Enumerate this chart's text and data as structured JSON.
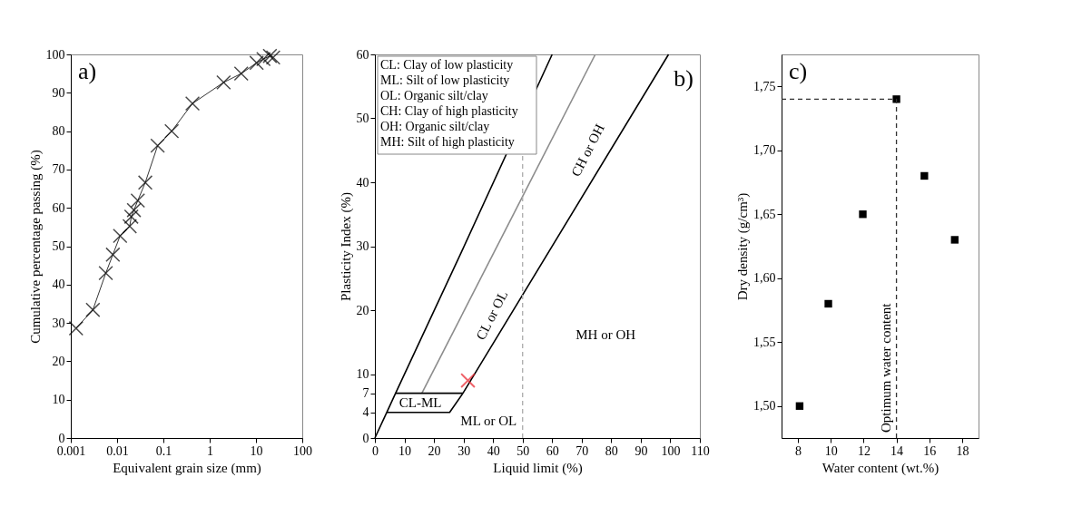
{
  "chart_data": [
    {
      "type": "line",
      "marker": "cross",
      "log": "x",
      "xlabel": "Equivalent grain size (mm)",
      "ylabel": "Cumulative percentage passing (%)",
      "xlim": [
        0.001,
        100
      ],
      "xticks": [
        0.001,
        0.01,
        0.1,
        1,
        10,
        100
      ],
      "ylim": [
        0,
        100
      ],
      "yticks": [
        0,
        10,
        20,
        30,
        40,
        50,
        60,
        70,
        80,
        90,
        100
      ],
      "series": [
        {
          "color": "#000000",
          "x": [
            0.0013,
            0.003,
            0.0057,
            0.0081,
            0.0116,
            0.0187,
            0.0203,
            0.0231,
            0.028,
            0.0406,
            0.075,
            0.151,
            0.425,
            2.0,
            4.8,
            10.3,
            14.5,
            20,
            23.5
          ],
          "values": [
            28.6,
            33.4,
            43,
            47.8,
            52.7,
            55.2,
            57.7,
            59.4,
            61.9,
            66.6,
            76.2,
            80,
            87.2,
            92.7,
            95,
            97.8,
            98.8,
            99.6,
            99.2
          ]
        }
      ],
      "annotations": [
        "a)"
      ]
    },
    {
      "type": "line",
      "marker": "none",
      "xlabel": "Liquid limit (%)",
      "ylabel": "Plasticity Index (%)",
      "xlim": [
        0,
        110
      ],
      "xticks": [
        0,
        10,
        20,
        30,
        40,
        50,
        60,
        70,
        80,
        90,
        100,
        110
      ],
      "ylim": [
        0,
        60
      ],
      "yticks": [
        0,
        4,
        7,
        10,
        20,
        30,
        40,
        50,
        60
      ],
      "series": [
        {
          "color": "#000000",
          "x": [
            0,
            4,
            7,
            29.3,
            60
          ],
          "values": [
            0,
            4,
            7,
            29.1,
            60
          ]
        },
        {
          "color": "#8c8c8c",
          "x": [
            15.9,
            74.6
          ],
          "values": [
            7,
            60
          ]
        },
        {
          "color": "#000000",
          "x": [
            4,
            25.3,
            29.8,
            99.4
          ],
          "values": [
            4,
            4,
            7,
            60
          ]
        },
        {
          "color": "#000000",
          "x": [
            7,
            29.8
          ],
          "values": [
            7,
            7
          ]
        },
        {
          "type": "scatter",
          "marker": "cross",
          "color": "#e8202a",
          "x": [
            31.5
          ],
          "values": [
            9
          ]
        }
      ],
      "ref_lines": [
        {
          "axis": "x",
          "value": 50,
          "color": "#aaaaaa",
          "line_style": "dashed"
        }
      ],
      "annotations": [
        "CL: Clay of low plasticity",
        "ML: Silt of low plasticity",
        "OL: Organic silt/clay",
        "CH: Clay of high plasticity",
        "OH: Organic silt/clay",
        "MH: Silt of high plasticity",
        "CH or OH",
        "CL or OL",
        "MH or OH",
        "ML or OL",
        "CL-ML",
        "b)"
      ]
    },
    {
      "type": "scatter",
      "marker": "square",
      "xlabel": "Water content (wt.%)",
      "ylabel": "Dry density (g/cm³)",
      "xlim": [
        7,
        19
      ],
      "xticks": [
        8,
        10,
        12,
        14,
        16,
        18
      ],
      "ylim": [
        1.475,
        1.775
      ],
      "yticks": [
        {
          "value": 1.5,
          "label": "1,50"
        },
        {
          "value": 1.55,
          "label": "1,55"
        },
        {
          "value": 1.6,
          "label": "1,60"
        },
        {
          "value": 1.65,
          "label": "1,65"
        },
        {
          "value": 1.7,
          "label": "1,70"
        },
        {
          "value": 1.75,
          "label": "1,75"
        }
      ],
      "series": [
        {
          "color": "#000000",
          "x": [
            8.1,
            9.85,
            11.95,
            14,
            15.7,
            17.55
          ],
          "values": [
            1.5,
            1.58,
            1.65,
            1.74,
            1.68,
            1.63
          ]
        }
      ],
      "ref_lines": [
        {
          "axis": "y",
          "value": 1.74,
          "color": "#333333",
          "line_style": "dashed"
        },
        {
          "axis": "x",
          "value": 14,
          "label": "Optimum water content",
          "color": "#333333",
          "line_style": "dashed"
        }
      ],
      "annotations": [
        "c)"
      ]
    }
  ]
}
